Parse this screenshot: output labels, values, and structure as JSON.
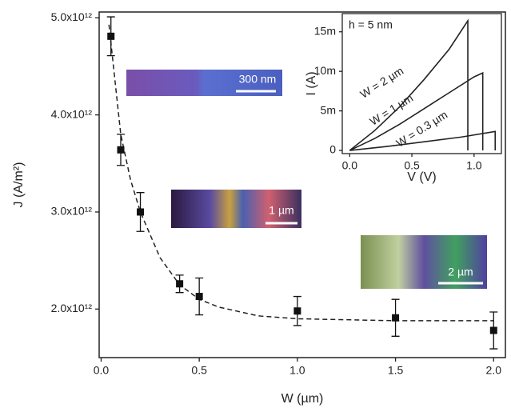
{
  "chart_data": [
    {
      "type": "scatter",
      "x_label": "W (µm)",
      "y_label": "J (A/m²)",
      "x": [
        0.05,
        0.1,
        0.2,
        0.4,
        0.5,
        1.0,
        1.5,
        2.0
      ],
      "values": [
        4810000000000.0,
        3640000000000.0,
        3000000000000.0,
        2260000000000.0,
        2130000000000.0,
        1980000000000.0,
        1910000000000.0,
        1780000000000.0
      ],
      "errors": [
        200000000000.0,
        160000000000.0,
        200000000000.0,
        90000000000.0,
        190000000000.0,
        150000000000.0,
        190000000000.0,
        190000000000.0
      ],
      "color": "#111111",
      "fit": {
        "x": [
          0.04,
          0.1,
          0.15,
          0.2,
          0.3,
          0.4,
          0.5,
          0.6,
          0.8,
          1.0,
          1.5,
          2.0
        ],
        "values": [
          4930000000000.0,
          3800000000000.0,
          3330000000000.0,
          3000000000000.0,
          2530000000000.0,
          2250000000000.0,
          2100000000000.0,
          2020000000000.0,
          1930000000000.0,
          1900000000000.0,
          1880000000000.0,
          1880000000000.0
        ]
      },
      "xlim": [
        -0.01,
        2.06
      ],
      "ylim": [
        1500000000000.0,
        5060000000000.0
      ],
      "xticks": [
        {
          "value": 0,
          "label": "0.0"
        },
        0.5,
        {
          "value": 1,
          "label": "1.0"
        },
        1.5,
        {
          "value": 2,
          "label": "2.0"
        }
      ],
      "yticks": [
        {
          "value": 2000000000000.0,
          "label": "2.0x10¹²"
        },
        {
          "value": 3000000000000.0,
          "label": "3.0x10¹²"
        },
        {
          "value": 4000000000000.0,
          "label": "4.0x10¹²"
        },
        {
          "value": 5000000000000.0,
          "label": "5.0x10¹²"
        }
      ],
      "image_labels": [
        "300 nm",
        "1 µm",
        "2 µm"
      ]
    },
    {
      "type": "line",
      "annotation": "h = 5 nm",
      "x_label": "V (V)",
      "y_label": "I (A)",
      "xlim": [
        -0.06,
        1.22
      ],
      "ylim": [
        -0.0004,
        0.0173
      ],
      "xticks": [
        {
          "value": 0,
          "label": "0.0"
        },
        0.5,
        {
          "value": 1,
          "label": "1.0"
        }
      ],
      "yticks": [
        0,
        {
          "value": 0.005,
          "label": "5m"
        },
        {
          "value": 0.01,
          "label": "10m"
        },
        {
          "value": 0.015,
          "label": "15m"
        }
      ],
      "series": [
        {
          "name": "W = 2 µm",
          "color": "#222222",
          "x": [
            0,
            0.2,
            0.4,
            0.6,
            0.8,
            0.95,
            0.95
          ],
          "values": [
            0,
            0.0025,
            0.0055,
            0.009,
            0.0128,
            0.0164,
            0
          ]
        },
        {
          "name": "W = 1 µm",
          "color": "#222222",
          "x": [
            0,
            0.2,
            0.4,
            0.6,
            0.8,
            1.0,
            1.07,
            1.07
          ],
          "values": [
            0,
            0.0015,
            0.0033,
            0.0053,
            0.0073,
            0.0093,
            0.0098,
            0
          ]
        },
        {
          "name": "W = 0.3 µm",
          "color": "#222222",
          "x": [
            0,
            0.3,
            0.6,
            0.9,
            1.17,
            1.17
          ],
          "values": [
            0,
            0.0005,
            0.0011,
            0.0017,
            0.0024,
            0
          ]
        }
      ]
    }
  ]
}
